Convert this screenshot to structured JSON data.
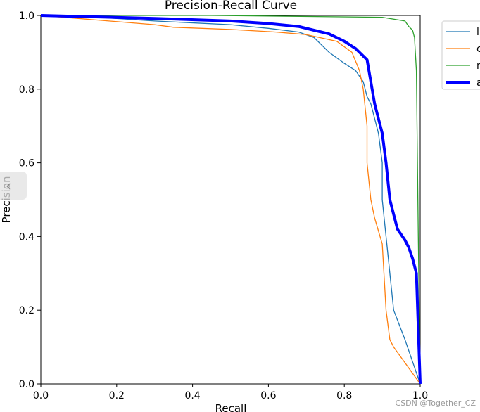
{
  "chart_data": {
    "type": "line",
    "title": "Precision-Recall Curve",
    "xlabel": "Recall",
    "ylabel": "Precision",
    "xlim": [
      0,
      1
    ],
    "ylim": [
      0,
      1
    ],
    "xticks": [
      "0.0",
      "0.2",
      "0.4",
      "0.6",
      "0.8",
      "1.0"
    ],
    "yticks": [
      "0.0",
      "0.2",
      "0.4",
      "0.6",
      "0.8",
      "1.0"
    ],
    "legend_position": "outside-top-right (clipped)",
    "grid": false,
    "series": [
      {
        "name": "l",
        "color": "#1f77b4",
        "points": [
          [
            0,
            1
          ],
          [
            0.15,
            0.995
          ],
          [
            0.3,
            0.985
          ],
          [
            0.5,
            0.975
          ],
          [
            0.6,
            0.965
          ],
          [
            0.68,
            0.955
          ],
          [
            0.72,
            0.94
          ],
          [
            0.74,
            0.92
          ],
          [
            0.76,
            0.9
          ],
          [
            0.8,
            0.87
          ],
          [
            0.83,
            0.85
          ],
          [
            0.85,
            0.82
          ],
          [
            0.86,
            0.78
          ],
          [
            0.87,
            0.76
          ],
          [
            0.88,
            0.72
          ],
          [
            0.89,
            0.68
          ],
          [
            0.9,
            0.6
          ],
          [
            0.9,
            0.5
          ],
          [
            0.91,
            0.4
          ],
          [
            0.92,
            0.3
          ],
          [
            0.93,
            0.2
          ],
          [
            0.96,
            0.12
          ],
          [
            1.0,
            0.0
          ]
        ]
      },
      {
        "name": "c",
        "color": "#ff7f0e",
        "points": [
          [
            0,
            1
          ],
          [
            0.3,
            0.975
          ],
          [
            0.35,
            0.968
          ],
          [
            0.5,
            0.962
          ],
          [
            0.62,
            0.955
          ],
          [
            0.7,
            0.948
          ],
          [
            0.78,
            0.93
          ],
          [
            0.82,
            0.9
          ],
          [
            0.84,
            0.85
          ],
          [
            0.85,
            0.8
          ],
          [
            0.86,
            0.7
          ],
          [
            0.86,
            0.6
          ],
          [
            0.87,
            0.5
          ],
          [
            0.88,
            0.45
          ],
          [
            0.9,
            0.38
          ],
          [
            0.91,
            0.2
          ],
          [
            0.92,
            0.12
          ],
          [
            0.93,
            0.1
          ],
          [
            1.0,
            0.0
          ]
        ]
      },
      {
        "name": "n",
        "color": "#2ca02c",
        "points": [
          [
            0,
            1
          ],
          [
            0.45,
            1.0
          ],
          [
            0.9,
            0.995
          ],
          [
            0.96,
            0.985
          ],
          [
            0.97,
            0.97
          ],
          [
            0.98,
            0.96
          ],
          [
            0.985,
            0.94
          ],
          [
            0.99,
            0.85
          ],
          [
            0.995,
            0.4
          ],
          [
            1.0,
            0.0
          ]
        ]
      },
      {
        "name": "a",
        "color": "#0000ff",
        "points": [
          [
            0,
            1
          ],
          [
            0.3,
            0.992
          ],
          [
            0.5,
            0.985
          ],
          [
            0.6,
            0.978
          ],
          [
            0.68,
            0.97
          ],
          [
            0.72,
            0.96
          ],
          [
            0.76,
            0.95
          ],
          [
            0.8,
            0.93
          ],
          [
            0.83,
            0.91
          ],
          [
            0.86,
            0.88
          ],
          [
            0.87,
            0.82
          ],
          [
            0.88,
            0.76
          ],
          [
            0.89,
            0.72
          ],
          [
            0.9,
            0.68
          ],
          [
            0.91,
            0.6
          ],
          [
            0.92,
            0.5
          ],
          [
            0.93,
            0.46
          ],
          [
            0.94,
            0.42
          ],
          [
            0.96,
            0.39
          ],
          [
            0.97,
            0.37
          ],
          [
            0.98,
            0.34
          ],
          [
            0.99,
            0.3
          ],
          [
            1.0,
            0.0
          ]
        ]
      }
    ]
  },
  "watermark": "CSDN @Together_CZ"
}
